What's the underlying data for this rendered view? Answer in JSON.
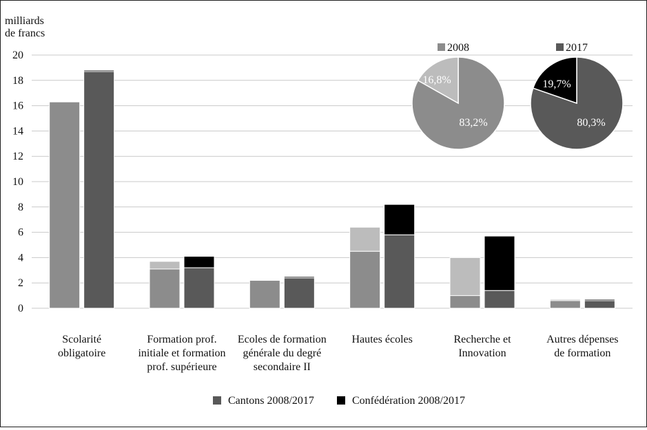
{
  "chart_data": {
    "type": "bar",
    "stacked": true,
    "unit_label": [
      "milliards",
      "de francs"
    ],
    "ylim": [
      0,
      20
    ],
    "yticks": [
      0,
      2,
      4,
      6,
      8,
      10,
      12,
      14,
      16,
      18,
      20
    ],
    "categories": [
      [
        "Scolarité",
        "obligatoire"
      ],
      [
        "Formation prof.",
        "initiale et formation",
        "prof. supérieure"
      ],
      [
        "Ecoles de formation",
        "générale du degré",
        "secondaire II"
      ],
      [
        "Hautes écoles"
      ],
      [
        "Recherche et",
        "Innovation"
      ],
      [
        "Autres dépenses",
        "de formation"
      ]
    ],
    "years": [
      "2008",
      "2017"
    ],
    "series": [
      {
        "name": "Cantons 2008/2017",
        "color_2008": "#8c8c8c",
        "color_2017": "#595959",
        "values_2008": [
          16.3,
          3.1,
          2.2,
          4.5,
          1.0,
          0.6
        ],
        "values_2017": [
          18.7,
          3.2,
          2.4,
          5.8,
          1.4,
          0.6
        ]
      },
      {
        "name": "Confédération 2008/2017",
        "color_2008": "#bcbcbc",
        "color_2017": "#000000",
        "values_2008": [
          0.05,
          0.6,
          0.05,
          1.9,
          3.0,
          0.1
        ],
        "values_2017": [
          0.1,
          0.9,
          0.1,
          2.4,
          4.3,
          0.1
        ]
      }
    ],
    "legend": {
      "position": "bottom",
      "entries": [
        {
          "label": "Cantons 2008/2017",
          "color": "#595959"
        },
        {
          "label": "Confédération 2008/2017",
          "color": "#000000"
        }
      ]
    },
    "pies": [
      {
        "title": "2008",
        "legend_color": "#8c8c8c",
        "slices": [
          {
            "label": "83,2%",
            "value": 83.2,
            "color": "#8c8c8c"
          },
          {
            "label": "16,8%",
            "value": 16.8,
            "color": "#bcbcbc"
          }
        ]
      },
      {
        "title": "2017",
        "legend_color": "#595959",
        "slices": [
          {
            "label": "80,3%",
            "value": 80.3,
            "color": "#595959"
          },
          {
            "label": "19,7%",
            "value": 19.7,
            "color": "#000000"
          }
        ]
      }
    ]
  }
}
